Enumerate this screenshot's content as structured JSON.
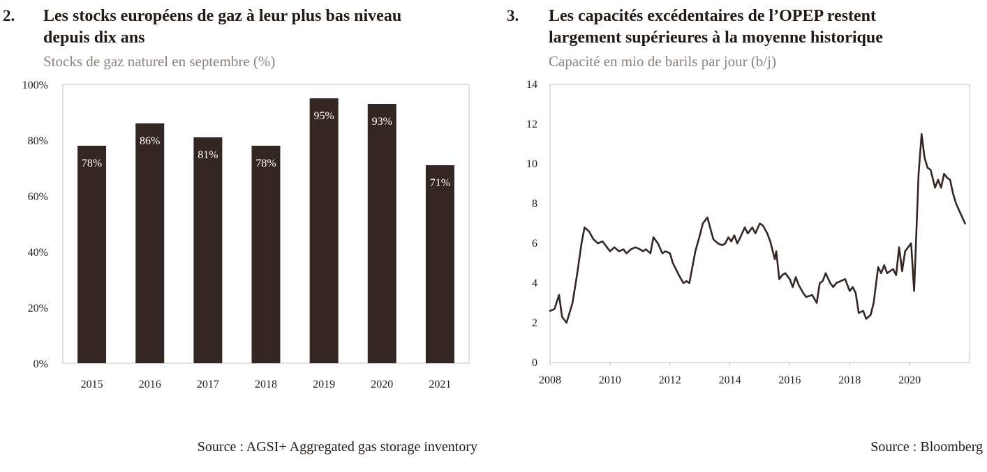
{
  "charts": [
    {
      "number": "2.",
      "title_line1": "Les stocks européens de gaz à leur plus bas niveau",
      "title_line2": "depuis dix ans",
      "subtitle": "Stocks de gaz naturel en septembre (%)",
      "source": "Source : AGSI+ Aggregated gas storage inventory"
    },
    {
      "number": "3.",
      "title_line1": "Les capacités excédentaires de l’OPEP restent",
      "title_line2": "largement supérieures à la moyenne historique",
      "subtitle": "Capacité en mio de barils par jour (b/j)",
      "source": "Source : Bloomberg"
    }
  ],
  "colors": {
    "bar": "#332623",
    "line": "#332623",
    "axis": "#c9bfb8",
    "subtitle": "#8c847f",
    "text": "#231a16"
  },
  "chart_data": [
    {
      "type": "bar",
      "categories": [
        "2015",
        "2016",
        "2017",
        "2018",
        "2019",
        "2020",
        "2021"
      ],
      "values": [
        78,
        86,
        81,
        78,
        95,
        93,
        71
      ],
      "data_labels": [
        "78%",
        "86%",
        "81%",
        "78%",
        "95%",
        "93%",
        "71%"
      ],
      "ylim": [
        0,
        100
      ],
      "yticks": [
        0,
        20,
        40,
        60,
        80,
        100
      ],
      "ytick_labels": [
        "0%",
        "20%",
        "40%",
        "60%",
        "80%",
        "100%"
      ],
      "grid": false
    },
    {
      "type": "line",
      "xlim": [
        2008,
        2022
      ],
      "xticks": [
        2008,
        2010,
        2012,
        2014,
        2016,
        2018,
        2020
      ],
      "xtick_labels": [
        "2008",
        "2010",
        "2012",
        "2014",
        "2016",
        "2018",
        "2020"
      ],
      "ylim": [
        0,
        14
      ],
      "yticks": [
        0,
        2,
        4,
        6,
        8,
        10,
        12,
        14
      ],
      "ytick_labels": [
        "0",
        "2",
        "4",
        "6",
        "8",
        "10",
        "12",
        "14"
      ],
      "grid": false,
      "series": [
        {
          "x": [
            2008.0,
            2008.15,
            2008.3,
            2008.4,
            2008.55,
            2008.75,
            2008.9,
            2009.05,
            2009.15,
            2009.3,
            2009.45,
            2009.6,
            2009.75,
            2009.85,
            2010.0,
            2010.15,
            2010.3,
            2010.45,
            2010.55,
            2010.7,
            2010.85,
            2011.0,
            2011.1,
            2011.2,
            2011.35,
            2011.45,
            2011.6,
            2011.75,
            2011.85,
            2012.0,
            2012.1,
            2012.2,
            2012.3,
            2012.45,
            2012.55,
            2012.65,
            2012.85,
            2013.0,
            2013.1,
            2013.25,
            2013.45,
            2013.6,
            2013.75,
            2013.85,
            2013.95,
            2014.05,
            2014.15,
            2014.25,
            2014.35,
            2014.5,
            2014.6,
            2014.75,
            2014.85,
            2015.0,
            2015.1,
            2015.25,
            2015.35,
            2015.5,
            2015.55,
            2015.65,
            2015.75,
            2015.85,
            2016.0,
            2016.1,
            2016.2,
            2016.3,
            2016.45,
            2016.55,
            2016.75,
            2016.9,
            2017.0,
            2017.1,
            2017.2,
            2017.35,
            2017.45,
            2017.55,
            2017.7,
            2017.85,
            2018.0,
            2018.1,
            2018.2,
            2018.3,
            2018.45,
            2018.55,
            2018.7,
            2018.8,
            2018.95,
            2019.05,
            2019.15,
            2019.25,
            2019.35,
            2019.45,
            2019.55,
            2019.65,
            2019.75,
            2019.85,
            2019.95,
            2020.05,
            2020.15,
            2020.3,
            2020.4,
            2020.5,
            2020.6,
            2020.7,
            2020.85,
            2020.95,
            2021.05,
            2021.15,
            2021.25,
            2021.35,
            2021.45,
            2021.55,
            2021.7,
            2021.85
          ],
          "y": [
            2.6,
            2.7,
            3.4,
            2.3,
            2.0,
            3.0,
            4.4,
            6.0,
            6.8,
            6.6,
            6.2,
            6.0,
            6.1,
            5.9,
            5.6,
            5.8,
            5.6,
            5.7,
            5.5,
            5.7,
            5.8,
            5.7,
            5.6,
            5.7,
            5.5,
            6.3,
            6.0,
            5.5,
            5.6,
            5.5,
            5.0,
            4.7,
            4.4,
            4.0,
            4.1,
            4.0,
            5.6,
            6.4,
            7.0,
            7.3,
            6.2,
            6.0,
            5.9,
            6.0,
            6.3,
            6.1,
            6.4,
            6.0,
            6.3,
            6.8,
            6.5,
            6.8,
            6.5,
            7.0,
            6.9,
            6.5,
            6.1,
            5.2,
            5.6,
            4.2,
            4.4,
            4.5,
            4.2,
            3.8,
            4.3,
            3.9,
            3.5,
            3.3,
            3.4,
            3.0,
            4.0,
            4.1,
            4.5,
            4.0,
            3.8,
            4.0,
            4.1,
            4.2,
            3.6,
            3.8,
            3.5,
            2.5,
            2.6,
            2.2,
            2.4,
            3.0,
            4.8,
            4.5,
            4.9,
            4.5,
            4.6,
            4.7,
            4.4,
            5.8,
            4.6,
            5.6,
            5.8,
            6.0,
            3.6,
            9.5,
            11.5,
            10.3,
            9.8,
            9.7,
            8.8,
            9.2,
            8.8,
            9.5,
            9.3,
            9.2,
            8.5,
            8.0,
            7.5,
            7.0
          ]
        }
      ]
    }
  ]
}
